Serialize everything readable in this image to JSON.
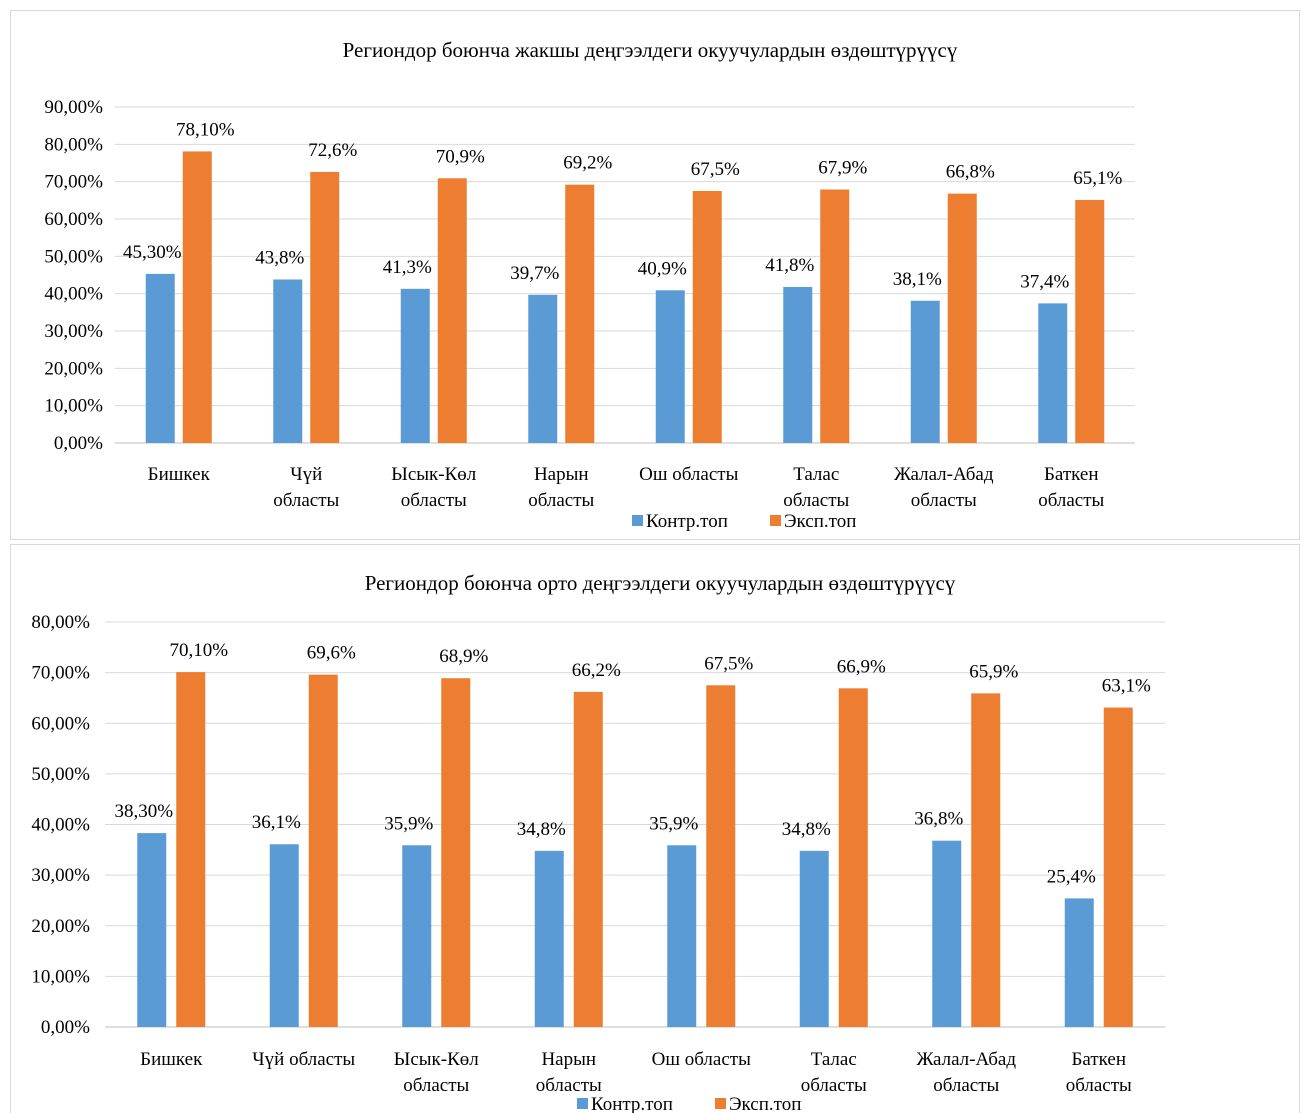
{
  "chart_data": [
    {
      "type": "bar",
      "title": "Региондор боюнча жакшы деңгээлдеги окуучулардын  өздөштүрүүсү",
      "categories": [
        [
          "Бишкек"
        ],
        [
          "Чүй",
          "областы"
        ],
        [
          "Ысык-Көл",
          "областы"
        ],
        [
          "Нарын",
          "областы"
        ],
        [
          "Ош областы"
        ],
        [
          "Талас",
          "областы"
        ],
        [
          "Жалал-Абад",
          "областы"
        ],
        [
          "Баткен",
          "областы"
        ]
      ],
      "series": [
        {
          "name": "Контр.топ",
          "color": "#5b9bd5",
          "values": [
            45.3,
            43.8,
            41.3,
            39.7,
            40.9,
            41.8,
            38.1,
            37.4
          ],
          "labels": [
            "45,30%",
            "43,8%",
            "41,3%",
            "39,7%",
            "40,9%",
            "41,8%",
            "38,1%",
            "37,4%"
          ]
        },
        {
          "name": "Эксп.топ",
          "color": "#ed7d31",
          "values": [
            78.1,
            72.6,
            70.9,
            69.2,
            67.5,
            67.9,
            66.8,
            65.1
          ],
          "labels": [
            "78,10%",
            "72,6%",
            "70,9%",
            "69,2%",
            "67,5%",
            "67,9%",
            "66,8%",
            "65,1%"
          ]
        }
      ],
      "ylim": [
        0,
        90
      ],
      "yticks": [
        "0,00%",
        "10,00%",
        "20,00%",
        "30,00%",
        "40,00%",
        "50,00%",
        "60,00%",
        "70,00%",
        "80,00%",
        "90,00%"
      ],
      "grid": true,
      "legend": "bottom"
    },
    {
      "type": "bar",
      "title": "Региондор боюнча орто деңгээлдеги окуучулардын  өздөштүрүүсү",
      "categories": [
        [
          "Бишкек"
        ],
        [
          "Чүй областы"
        ],
        [
          "Ысык-Көл",
          "областы"
        ],
        [
          "Нарын",
          "областы"
        ],
        [
          "Ош областы"
        ],
        [
          "Талас",
          "областы"
        ],
        [
          "Жалал-Абад",
          "областы"
        ],
        [
          "Баткен",
          "областы"
        ]
      ],
      "series": [
        {
          "name": "Контр.топ",
          "color": "#5b9bd5",
          "values": [
            38.3,
            36.1,
            35.9,
            34.8,
            35.9,
            34.8,
            36.8,
            25.4
          ],
          "labels": [
            "38,30%",
            "36,1%",
            "35,9%",
            "34,8%",
            "35,9%",
            "34,8%",
            "36,8%",
            "25,4%"
          ]
        },
        {
          "name": "Эксп.топ",
          "color": "#ed7d31",
          "values": [
            70.1,
            69.6,
            68.9,
            66.2,
            67.5,
            66.9,
            65.9,
            63.1
          ],
          "labels": [
            "70,10%",
            "69,6%",
            "68,9%",
            "66,2%",
            "67,5%",
            "66,9%",
            "65,9%",
            "63,1%"
          ]
        }
      ],
      "ylim": [
        0,
        80
      ],
      "yticks": [
        "0,00%",
        "10,00%",
        "20,00%",
        "30,00%",
        "40,00%",
        "50,00%",
        "60,00%",
        "70,00%",
        "80,00%"
      ],
      "grid": true,
      "legend": "bottom"
    }
  ]
}
